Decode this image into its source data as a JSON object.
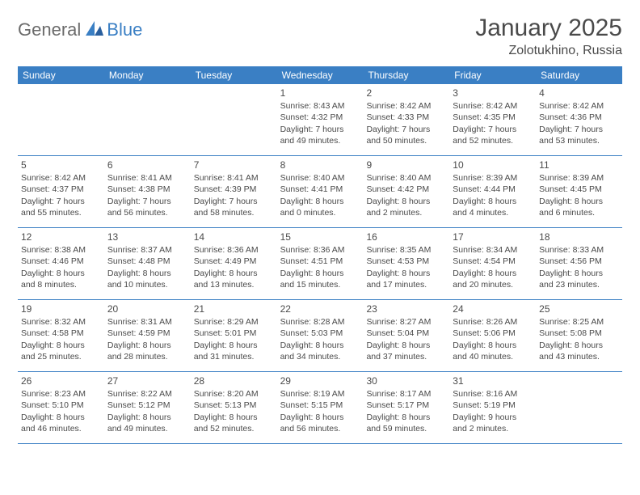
{
  "logo": {
    "part1": "General",
    "part2": "Blue"
  },
  "title": "January 2025",
  "location": "Zolotukhino, Russia",
  "colors": {
    "brand": "#3a7fc4",
    "text": "#4a4a4a",
    "logo_gray": "#6b6b6b",
    "background": "#ffffff"
  },
  "weekdays": [
    "Sunday",
    "Monday",
    "Tuesday",
    "Wednesday",
    "Thursday",
    "Friday",
    "Saturday"
  ],
  "weeks": [
    [
      null,
      null,
      null,
      {
        "n": "1",
        "sr": "8:43 AM",
        "ss": "4:32 PM",
        "dl": "7 hours and 49 minutes."
      },
      {
        "n": "2",
        "sr": "8:42 AM",
        "ss": "4:33 PM",
        "dl": "7 hours and 50 minutes."
      },
      {
        "n": "3",
        "sr": "8:42 AM",
        "ss": "4:35 PM",
        "dl": "7 hours and 52 minutes."
      },
      {
        "n": "4",
        "sr": "8:42 AM",
        "ss": "4:36 PM",
        "dl": "7 hours and 53 minutes."
      }
    ],
    [
      {
        "n": "5",
        "sr": "8:42 AM",
        "ss": "4:37 PM",
        "dl": "7 hours and 55 minutes."
      },
      {
        "n": "6",
        "sr": "8:41 AM",
        "ss": "4:38 PM",
        "dl": "7 hours and 56 minutes."
      },
      {
        "n": "7",
        "sr": "8:41 AM",
        "ss": "4:39 PM",
        "dl": "7 hours and 58 minutes."
      },
      {
        "n": "8",
        "sr": "8:40 AM",
        "ss": "4:41 PM",
        "dl": "8 hours and 0 minutes."
      },
      {
        "n": "9",
        "sr": "8:40 AM",
        "ss": "4:42 PM",
        "dl": "8 hours and 2 minutes."
      },
      {
        "n": "10",
        "sr": "8:39 AM",
        "ss": "4:44 PM",
        "dl": "8 hours and 4 minutes."
      },
      {
        "n": "11",
        "sr": "8:39 AM",
        "ss": "4:45 PM",
        "dl": "8 hours and 6 minutes."
      }
    ],
    [
      {
        "n": "12",
        "sr": "8:38 AM",
        "ss": "4:46 PM",
        "dl": "8 hours and 8 minutes."
      },
      {
        "n": "13",
        "sr": "8:37 AM",
        "ss": "4:48 PM",
        "dl": "8 hours and 10 minutes."
      },
      {
        "n": "14",
        "sr": "8:36 AM",
        "ss": "4:49 PM",
        "dl": "8 hours and 13 minutes."
      },
      {
        "n": "15",
        "sr": "8:36 AM",
        "ss": "4:51 PM",
        "dl": "8 hours and 15 minutes."
      },
      {
        "n": "16",
        "sr": "8:35 AM",
        "ss": "4:53 PM",
        "dl": "8 hours and 17 minutes."
      },
      {
        "n": "17",
        "sr": "8:34 AM",
        "ss": "4:54 PM",
        "dl": "8 hours and 20 minutes."
      },
      {
        "n": "18",
        "sr": "8:33 AM",
        "ss": "4:56 PM",
        "dl": "8 hours and 23 minutes."
      }
    ],
    [
      {
        "n": "19",
        "sr": "8:32 AM",
        "ss": "4:58 PM",
        "dl": "8 hours and 25 minutes."
      },
      {
        "n": "20",
        "sr": "8:31 AM",
        "ss": "4:59 PM",
        "dl": "8 hours and 28 minutes."
      },
      {
        "n": "21",
        "sr": "8:29 AM",
        "ss": "5:01 PM",
        "dl": "8 hours and 31 minutes."
      },
      {
        "n": "22",
        "sr": "8:28 AM",
        "ss": "5:03 PM",
        "dl": "8 hours and 34 minutes."
      },
      {
        "n": "23",
        "sr": "8:27 AM",
        "ss": "5:04 PM",
        "dl": "8 hours and 37 minutes."
      },
      {
        "n": "24",
        "sr": "8:26 AM",
        "ss": "5:06 PM",
        "dl": "8 hours and 40 minutes."
      },
      {
        "n": "25",
        "sr": "8:25 AM",
        "ss": "5:08 PM",
        "dl": "8 hours and 43 minutes."
      }
    ],
    [
      {
        "n": "26",
        "sr": "8:23 AM",
        "ss": "5:10 PM",
        "dl": "8 hours and 46 minutes."
      },
      {
        "n": "27",
        "sr": "8:22 AM",
        "ss": "5:12 PM",
        "dl": "8 hours and 49 minutes."
      },
      {
        "n": "28",
        "sr": "8:20 AM",
        "ss": "5:13 PM",
        "dl": "8 hours and 52 minutes."
      },
      {
        "n": "29",
        "sr": "8:19 AM",
        "ss": "5:15 PM",
        "dl": "8 hours and 56 minutes."
      },
      {
        "n": "30",
        "sr": "8:17 AM",
        "ss": "5:17 PM",
        "dl": "8 hours and 59 minutes."
      },
      {
        "n": "31",
        "sr": "8:16 AM",
        "ss": "5:19 PM",
        "dl": "9 hours and 2 minutes."
      },
      null
    ]
  ],
  "labels": {
    "sunrise": "Sunrise:",
    "sunset": "Sunset:",
    "daylight": "Daylight:"
  }
}
